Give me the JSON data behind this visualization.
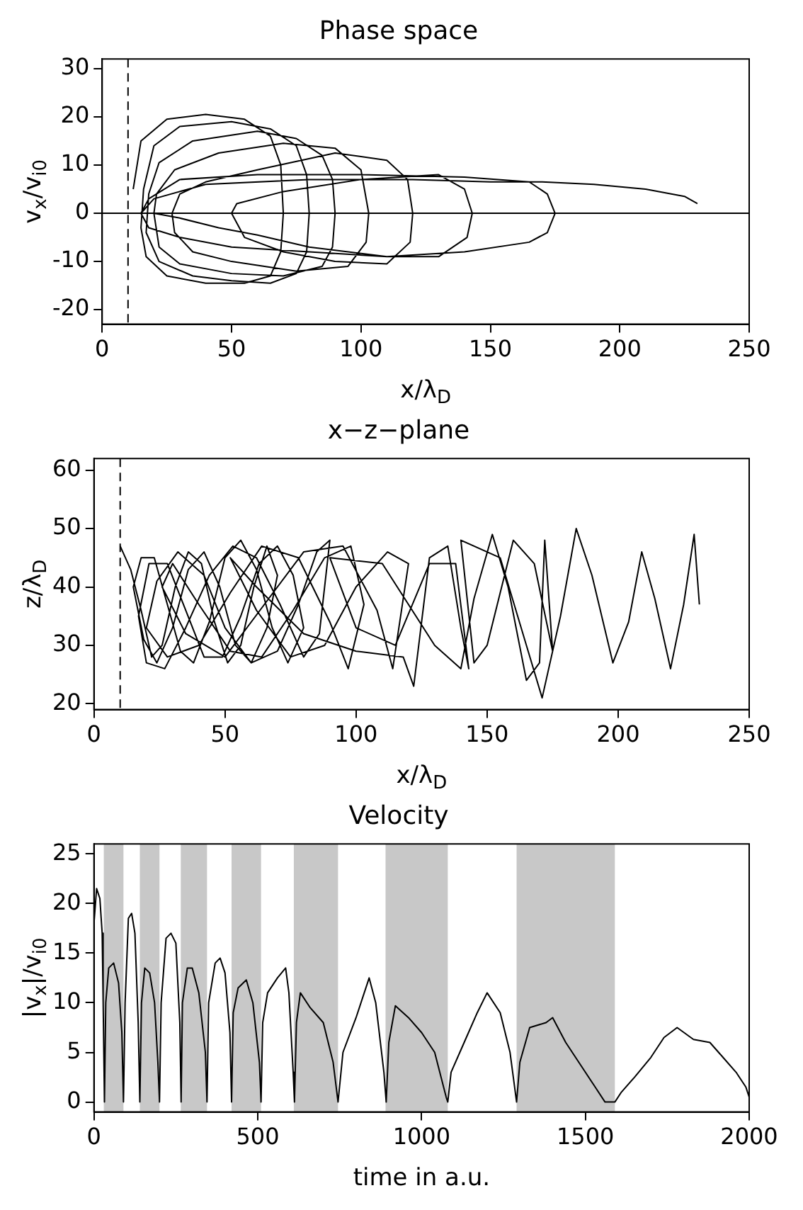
{
  "chart_data": [
    {
      "type": "line",
      "title": "Phase space",
      "xlabel": "x/λ$_{D}$",
      "ylabel": "v$_{x}$/v$_{i0}$",
      "color": "#000000",
      "marker": "none",
      "xlim": [
        0,
        250
      ],
      "xticks": [
        0,
        50,
        100,
        150,
        200,
        250
      ],
      "ylim": [
        -23,
        32
      ],
      "yticks": [
        -20,
        -10,
        0,
        10,
        20,
        30
      ],
      "ref_lines": [
        {
          "axis": "x",
          "value": 10,
          "line_style": "dashed",
          "color": "#000000"
        },
        {
          "axis": "y",
          "value": 0,
          "color": "#000000"
        }
      ],
      "x": [
        12,
        15,
        25,
        40,
        55,
        65,
        69,
        70,
        69,
        65,
        55,
        40,
        25,
        17,
        15,
        16,
        20,
        30,
        50,
        65,
        75,
        79,
        80,
        79,
        75,
        65,
        50,
        35,
        22,
        17,
        18,
        22,
        35,
        60,
        75,
        85,
        89,
        90,
        89,
        85,
        70,
        50,
        30,
        22,
        20,
        21,
        28,
        45,
        70,
        90,
        100,
        103,
        102,
        95,
        75,
        50,
        35,
        28,
        27,
        30,
        40,
        60,
        90,
        110,
        118,
        120,
        119,
        110,
        90,
        70,
        55,
        50,
        52,
        70,
        100,
        130,
        140,
        143,
        141,
        130,
        110,
        80,
        60,
        45,
        30,
        20,
        15,
        18,
        30,
        60,
        100,
        140,
        165,
        172,
        175,
        172,
        165,
        140,
        110,
        80,
        50,
        30,
        18,
        15,
        20,
        40,
        80,
        120,
        150,
        170,
        190,
        210,
        225,
        230
      ],
      "values": [
        5,
        15,
        19.5,
        20.5,
        19.5,
        16,
        10,
        0,
        -8,
        -13,
        -14.5,
        -14.5,
        -13,
        -9,
        -3,
        5,
        14,
        18,
        19,
        17.5,
        14,
        8,
        0,
        -8,
        -12.5,
        -14.5,
        -14,
        -13,
        -10,
        -4,
        4,
        10.5,
        15,
        17,
        15.5,
        12,
        7,
        0,
        -7,
        -11,
        -13,
        -12.5,
        -10.5,
        -7,
        0,
        4,
        9,
        12.5,
        14.5,
        13.5,
        9,
        0,
        -6,
        -11,
        -12,
        -10,
        -8,
        -4,
        0,
        4,
        6.5,
        9,
        12.5,
        11,
        7,
        0,
        -6,
        -10.5,
        -10,
        -8,
        -5,
        0,
        2,
        4.5,
        7,
        8,
        5,
        0,
        -5,
        -9,
        -9,
        -7,
        -4.5,
        -3,
        -1,
        0,
        0,
        3,
        7,
        8,
        8,
        7.5,
        6.5,
        4,
        0,
        -4,
        -6,
        -8,
        -9,
        -8,
        -7,
        -5,
        -3,
        0,
        3,
        6,
        7,
        7,
        6.5,
        6.5,
        6,
        5,
        3.5,
        2
      ]
    },
    {
      "type": "line",
      "title": "x−z−plane",
      "xlabel": "x/λ$_{D}$",
      "ylabel": "z/λ$_{D}$",
      "color": "#000000",
      "marker": "none",
      "xlim": [
        0,
        250
      ],
      "xticks": [
        0,
        50,
        100,
        150,
        200,
        250
      ],
      "ylim": [
        19,
        62
      ],
      "yticks": [
        20,
        30,
        40,
        50,
        60
      ],
      "ref_lines": [
        {
          "axis": "x",
          "value": 10,
          "line_style": "dashed",
          "color": "#000000"
        }
      ],
      "x": [
        10,
        14,
        18,
        22,
        26,
        31,
        36,
        41,
        46,
        51,
        56,
        61,
        66,
        70,
        66,
        60,
        54,
        48,
        42,
        36,
        30,
        24,
        19,
        15,
        18,
        23,
        28,
        33,
        38,
        44,
        50,
        56,
        62,
        68,
        74,
        80,
        76,
        70,
        63,
        56,
        49,
        42,
        35,
        28,
        21,
        17,
        20,
        27,
        35,
        44,
        53,
        62,
        71,
        80,
        86,
        90,
        85,
        78,
        70,
        60,
        50,
        42,
        32,
        24,
        20,
        28,
        40,
        52,
        64,
        78,
        90,
        97,
        103,
        98,
        88,
        76,
        64,
        52,
        40,
        30,
        26,
        35,
        50,
        65,
        80,
        95,
        108,
        114,
        120,
        112,
        100,
        88,
        75,
        62,
        52,
        62,
        80,
        100,
        118,
        122,
        128,
        135,
        140,
        143,
        138,
        128,
        115,
        100,
        90,
        110,
        130,
        140,
        145,
        152,
        158,
        165,
        170,
        172,
        175,
        168,
        160,
        150,
        145,
        140,
        155,
        165,
        171,
        178,
        184,
        190,
        198,
        204,
        209,
        214,
        220,
        225,
        229,
        231
      ],
      "values": [
        47,
        43,
        36,
        28,
        30,
        40,
        46,
        44,
        34,
        27,
        30,
        40,
        47,
        42,
        33,
        27,
        30,
        40,
        46,
        43,
        33,
        27,
        31,
        40,
        45,
        45,
        37,
        29,
        27,
        34,
        45,
        48,
        43,
        33,
        27,
        33,
        42,
        47,
        44,
        35,
        28,
        28,
        36,
        44,
        44,
        35,
        27,
        26,
        33,
        42,
        47,
        45,
        37,
        28,
        32,
        48,
        46,
        37,
        29,
        27,
        33,
        42,
        46,
        41,
        33,
        28,
        30,
        39,
        47,
        45,
        34,
        26,
        37,
        47,
        45,
        36,
        28,
        29,
        37,
        44,
        40,
        32,
        28,
        37,
        46,
        47,
        36,
        26,
        44,
        46,
        40,
        30,
        28,
        36,
        45,
        40,
        32,
        29,
        28,
        23,
        45,
        47,
        33,
        26,
        44,
        44,
        30,
        33,
        45,
        44,
        30,
        26,
        38,
        49,
        40,
        24,
        27,
        48,
        29,
        44,
        48,
        30,
        27,
        48,
        45,
        30,
        21,
        35,
        50,
        42,
        27,
        34,
        46,
        38,
        26,
        37,
        49,
        37
      ]
    },
    {
      "type": "line",
      "title": "Velocity",
      "xlabel": "time in a.u.",
      "ylabel": "|v$_{x}$|/v$_{i0}$",
      "color": "#000000",
      "marker": "none",
      "xlim": [
        0,
        2000
      ],
      "xticks": [
        0,
        500,
        1000,
        1500,
        2000
      ],
      "ylim": [
        -1,
        26
      ],
      "yticks": [
        0,
        5,
        10,
        15,
        20,
        25
      ],
      "bands": [
        {
          "axis": "x",
          "from": 30,
          "to": 90,
          "color": "#c8c8c8"
        },
        {
          "axis": "x",
          "from": 140,
          "to": 200,
          "color": "#c8c8c8"
        },
        {
          "axis": "x",
          "from": 265,
          "to": 345,
          "color": "#c8c8c8"
        },
        {
          "axis": "x",
          "from": 420,
          "to": 510,
          "color": "#c8c8c8"
        },
        {
          "axis": "x",
          "from": 610,
          "to": 745,
          "color": "#c8c8c8"
        },
        {
          "axis": "x",
          "from": 890,
          "to": 1080,
          "color": "#c8c8c8"
        },
        {
          "axis": "x",
          "from": 1290,
          "to": 1590,
          "color": "#c8c8c8"
        }
      ],
      "x": [
        0,
        8,
        18,
        25,
        28,
        32,
        36,
        45,
        60,
        75,
        85,
        90,
        95,
        105,
        115,
        125,
        135,
        140,
        145,
        155,
        170,
        185,
        195,
        200,
        205,
        220,
        235,
        250,
        262,
        266,
        270,
        285,
        300,
        320,
        340,
        345,
        350,
        370,
        385,
        400,
        415,
        420,
        425,
        440,
        465,
        485,
        505,
        510,
        515,
        530,
        560,
        585,
        595,
        608,
        612,
        618,
        630,
        660,
        700,
        730,
        745,
        760,
        800,
        840,
        860,
        885,
        892,
        900,
        920,
        960,
        1000,
        1040,
        1075,
        1080,
        1090,
        1130,
        1170,
        1200,
        1240,
        1270,
        1290,
        1300,
        1330,
        1380,
        1400,
        1440,
        1490,
        1530,
        1560,
        1590,
        1610,
        1650,
        1700,
        1740,
        1780,
        1830,
        1880,
        1920,
        1960,
        1990,
        2000
      ],
      "values": [
        18,
        21.5,
        20.5,
        17,
        10,
        0,
        10,
        13.5,
        14,
        12,
        7,
        0,
        10,
        18.5,
        19,
        17,
        8,
        0,
        10,
        13.5,
        13,
        10,
        4,
        0,
        10,
        16.5,
        17,
        16,
        8,
        0,
        10,
        13.5,
        13.5,
        11,
        5,
        0,
        10,
        14,
        14.5,
        13,
        7,
        0,
        9,
        11.5,
        12.3,
        10,
        4,
        0,
        8,
        11,
        12.5,
        13.5,
        11,
        3,
        0,
        8,
        11,
        9.5,
        8,
        4,
        0,
        5,
        8.5,
        12.5,
        10,
        3,
        0,
        6,
        9.7,
        8.5,
        7,
        5,
        0.5,
        0,
        3,
        6,
        9,
        11,
        9,
        5,
        0,
        4,
        7.5,
        8,
        8.5,
        6,
        3.5,
        1.5,
        0,
        0,
        1,
        2.5,
        4.5,
        6.5,
        7.5,
        6.3,
        6,
        4.5,
        3,
        1.5,
        0.5
      ]
    }
  ]
}
